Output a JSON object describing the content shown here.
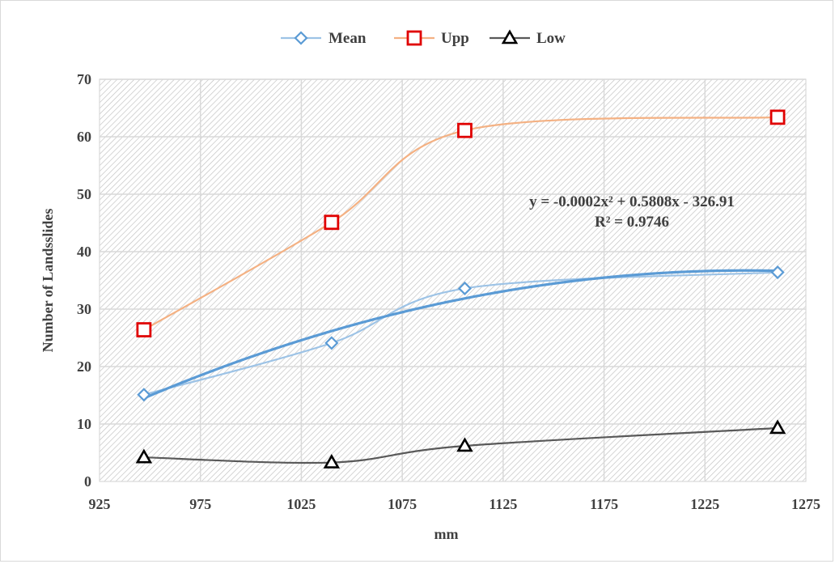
{
  "chart_data": {
    "type": "line",
    "title": "",
    "xlabel": "mm",
    "ylabel": "Number of  Landsslides",
    "xlim": [
      925,
      1275
    ],
    "ylim": [
      0,
      70
    ],
    "xticks": [
      925,
      975,
      1025,
      1075,
      1125,
      1175,
      1225,
      1275
    ],
    "yticks": [
      0,
      10,
      20,
      30,
      40,
      50,
      60,
      70
    ],
    "grid": true,
    "legend_position": "top-center",
    "series": [
      {
        "name": "Mean",
        "marker": "diamond",
        "color": "#9dc3e6",
        "x": [
          947,
          1040,
          1106,
          1261
        ],
        "y": [
          15.1,
          24.1,
          33.6,
          36.4
        ]
      },
      {
        "name": "Upp",
        "marker": "square",
        "color": "#f4b183",
        "markerColor": "#e00000",
        "x": [
          947,
          1040,
          1106,
          1261
        ],
        "y": [
          26.4,
          45.1,
          61.1,
          63.4
        ]
      },
      {
        "name": "Low",
        "marker": "triangle",
        "color": "#595959",
        "markerColor": "#000000",
        "x": [
          947,
          1040,
          1106,
          1261
        ],
        "y": [
          4.2,
          3.3,
          6.2,
          9.3
        ]
      }
    ],
    "trendline": {
      "series": "Mean",
      "type": "polynomial",
      "color": "#5b9bd5",
      "equation": "y = -0.0002x² + 0.5808x - 326.91",
      "r_squared": "R² = 0.9746",
      "coefficients": [
        -0.0002,
        0.5808,
        -326.91
      ],
      "x_range": [
        947,
        1261
      ]
    }
  }
}
